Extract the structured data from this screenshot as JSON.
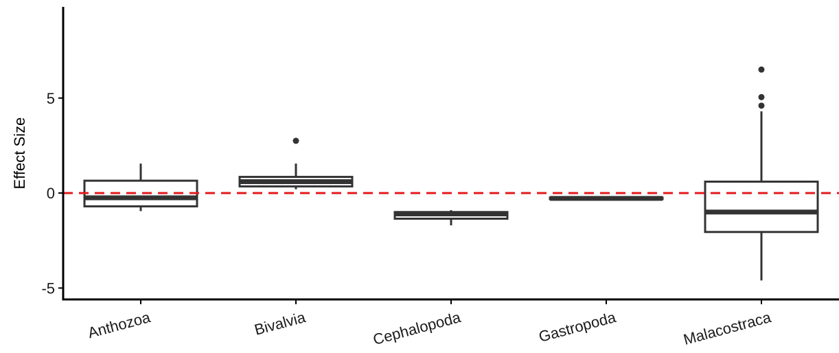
{
  "chart_data": {
    "type": "boxplot",
    "title": "",
    "xlabel": "",
    "ylabel": "Effect Size",
    "ylim": [
      -5.6,
      9.8
    ],
    "yticks": [
      -5,
      0,
      5
    ],
    "ytick_labels": [
      "-5",
      "0",
      "5"
    ],
    "reference_line": {
      "y": 0,
      "color": "#e41a1c",
      "style": "dashed"
    },
    "grid": false,
    "categories": [
      "Anthozoa",
      "Bivalvia",
      "Cephalopoda",
      "Gastropoda",
      "Malacostraca"
    ],
    "boxes": [
      {
        "category": "Anthozoa",
        "whisker_low": -0.95,
        "q1": -0.7,
        "median": -0.25,
        "q3": 0.65,
        "whisker_high": 1.55,
        "outliers": []
      },
      {
        "category": "Bivalvia",
        "whisker_low": 0.2,
        "q1": 0.35,
        "median": 0.6,
        "q3": 0.85,
        "whisker_high": 1.55,
        "outliers": [
          2.75
        ]
      },
      {
        "category": "Cephalopoda",
        "whisker_low": -1.7,
        "q1": -1.35,
        "median": -1.1,
        "q3": -1.0,
        "whisker_high": -0.9,
        "outliers": []
      },
      {
        "category": "Gastropoda",
        "whisker_low": -0.35,
        "q1": -0.32,
        "median": -0.28,
        "q3": -0.24,
        "whisker_high": -0.2,
        "outliers": []
      },
      {
        "category": "Malacostraca",
        "whisker_low": -4.6,
        "q1": -2.05,
        "median": -1.0,
        "q3": 0.6,
        "whisker_high": 4.3,
        "outliers": [
          4.6,
          5.05,
          6.5
        ]
      }
    ],
    "colors": {
      "box_line": "#333333",
      "axis": "#000000",
      "reference": "#e41a1c",
      "outlier": "#333333"
    }
  }
}
